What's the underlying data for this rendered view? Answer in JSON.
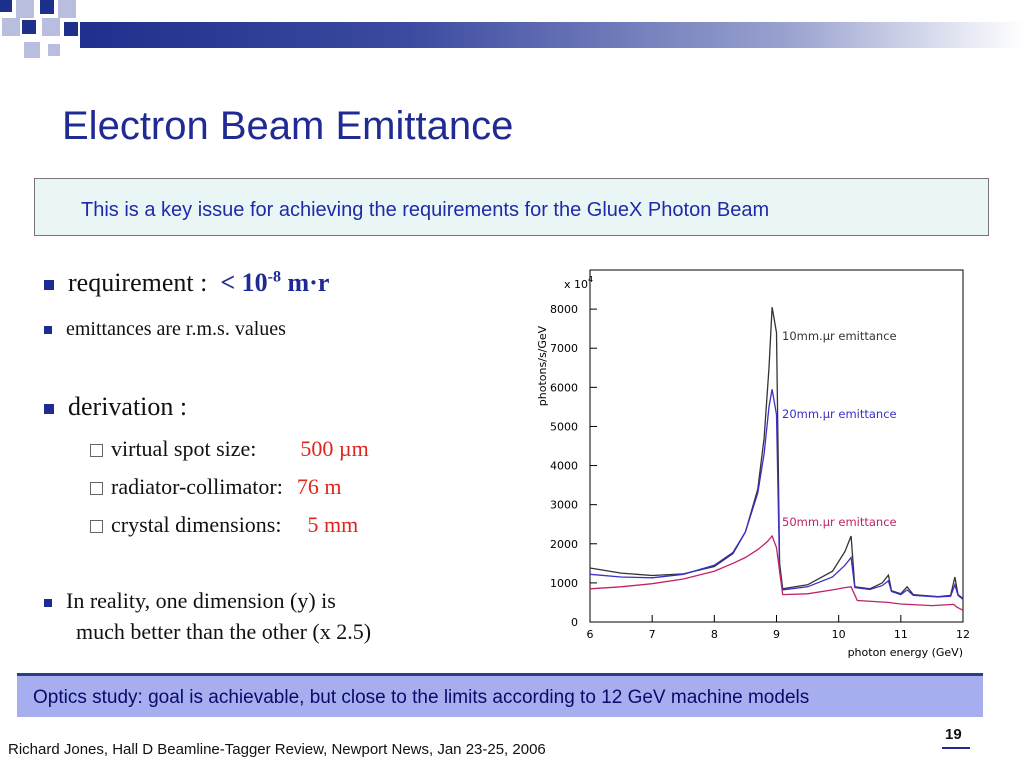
{
  "slide": {
    "title": "Electron Beam Emittance",
    "key_issue": "This is a key issue for achieving the requirements for the GlueX Photon Beam",
    "bullets": {
      "requirement_label": "requirement :",
      "requirement_value_prefix": "< 10",
      "requirement_exponent": "-8",
      "requirement_value_unit": " m·r",
      "emittance_note": "emittances are r.m.s. values",
      "derivation_label": "derivation :",
      "sub_items": [
        {
          "label": "virtual spot size:",
          "value": "500 µm"
        },
        {
          "label": "radiator-collimator:",
          "value": "76 m"
        },
        {
          "label": "crystal dimensions:",
          "value": "5 mm"
        }
      ],
      "reality_line1": "In reality, one dimension (y) is",
      "reality_line2": "much better than the other (x 2.5)"
    },
    "banner": "Optics study: goal is achievable, but close to the limits according to 12 GeV  machine models",
    "page_number": "19",
    "footer": "Richard Jones, Hall D Beamline-Tagger Review, Newport News, Jan 23-25, 2006",
    "colors": {
      "accent": "#1f2a93",
      "highlight": "#e0251c",
      "banner": "#a6aef0"
    }
  },
  "chart_data": {
    "type": "line",
    "ylabel": "photons/s/GeV",
    "xlabel": "photon energy (GeV)",
    "multiplier": "x 10",
    "multiplier_exp": "4",
    "xlim": [
      6,
      12
    ],
    "ylim": [
      0,
      9000
    ],
    "x_ticks": [
      "6",
      "7",
      "8",
      "9",
      "10",
      "11",
      "12"
    ],
    "y_ticks": [
      "0",
      "1000",
      "2000",
      "3000",
      "4000",
      "5000",
      "6000",
      "7000",
      "8000"
    ],
    "series": [
      {
        "name": "10mm.µr emittance",
        "color": "#333333",
        "points": [
          [
            6.0,
            1380
          ],
          [
            6.5,
            1250
          ],
          [
            7.0,
            1190
          ],
          [
            7.5,
            1230
          ],
          [
            8.0,
            1420
          ],
          [
            8.3,
            1750
          ],
          [
            8.5,
            2300
          ],
          [
            8.7,
            3400
          ],
          [
            8.8,
            4700
          ],
          [
            8.88,
            6500
          ],
          [
            8.93,
            8050
          ],
          [
            9.0,
            7400
          ],
          [
            9.05,
            1500
          ],
          [
            9.1,
            850
          ],
          [
            9.5,
            950
          ],
          [
            9.9,
            1300
          ],
          [
            10.1,
            1800
          ],
          [
            10.2,
            2200
          ],
          [
            10.26,
            900
          ],
          [
            10.5,
            850
          ],
          [
            10.7,
            1000
          ],
          [
            10.8,
            1200
          ],
          [
            10.85,
            800
          ],
          [
            11.0,
            720
          ],
          [
            11.1,
            900
          ],
          [
            11.2,
            700
          ],
          [
            11.6,
            650
          ],
          [
            11.8,
            680
          ],
          [
            11.87,
            1150
          ],
          [
            11.92,
            700
          ],
          [
            12.0,
            600
          ]
        ]
      },
      {
        "name": "20mm.µr emittance",
        "color": "#3a2fc7",
        "points": [
          [
            6.0,
            1220
          ],
          [
            6.5,
            1150
          ],
          [
            7.0,
            1130
          ],
          [
            7.5,
            1220
          ],
          [
            8.0,
            1450
          ],
          [
            8.3,
            1780
          ],
          [
            8.5,
            2300
          ],
          [
            8.7,
            3300
          ],
          [
            8.8,
            4300
          ],
          [
            8.88,
            5500
          ],
          [
            8.93,
            5950
          ],
          [
            9.0,
            5300
          ],
          [
            9.05,
            1300
          ],
          [
            9.1,
            820
          ],
          [
            9.5,
            900
          ],
          [
            9.9,
            1150
          ],
          [
            10.1,
            1450
          ],
          [
            10.2,
            1650
          ],
          [
            10.26,
            880
          ],
          [
            10.5,
            830
          ],
          [
            10.7,
            930
          ],
          [
            10.8,
            1050
          ],
          [
            10.85,
            780
          ],
          [
            11.0,
            700
          ],
          [
            11.1,
            820
          ],
          [
            11.2,
            680
          ],
          [
            11.6,
            640
          ],
          [
            11.8,
            660
          ],
          [
            11.87,
            950
          ],
          [
            11.92,
            680
          ],
          [
            12.0,
            580
          ]
        ]
      },
      {
        "name": "50mm.µr emittance",
        "color": "#c0226a",
        "points": [
          [
            6.0,
            850
          ],
          [
            6.5,
            900
          ],
          [
            7.0,
            980
          ],
          [
            7.5,
            1100
          ],
          [
            8.0,
            1300
          ],
          [
            8.3,
            1500
          ],
          [
            8.5,
            1650
          ],
          [
            8.7,
            1850
          ],
          [
            8.85,
            2050
          ],
          [
            8.93,
            2200
          ],
          [
            9.0,
            1900
          ],
          [
            9.1,
            700
          ],
          [
            9.5,
            720
          ],
          [
            9.9,
            820
          ],
          [
            10.1,
            880
          ],
          [
            10.2,
            900
          ],
          [
            10.3,
            550
          ],
          [
            10.8,
            500
          ],
          [
            11.0,
            460
          ],
          [
            11.5,
            420
          ],
          [
            11.85,
            450
          ],
          [
            11.9,
            380
          ],
          [
            12.0,
            300
          ]
        ]
      }
    ],
    "legend_placement": "inline-right"
  }
}
